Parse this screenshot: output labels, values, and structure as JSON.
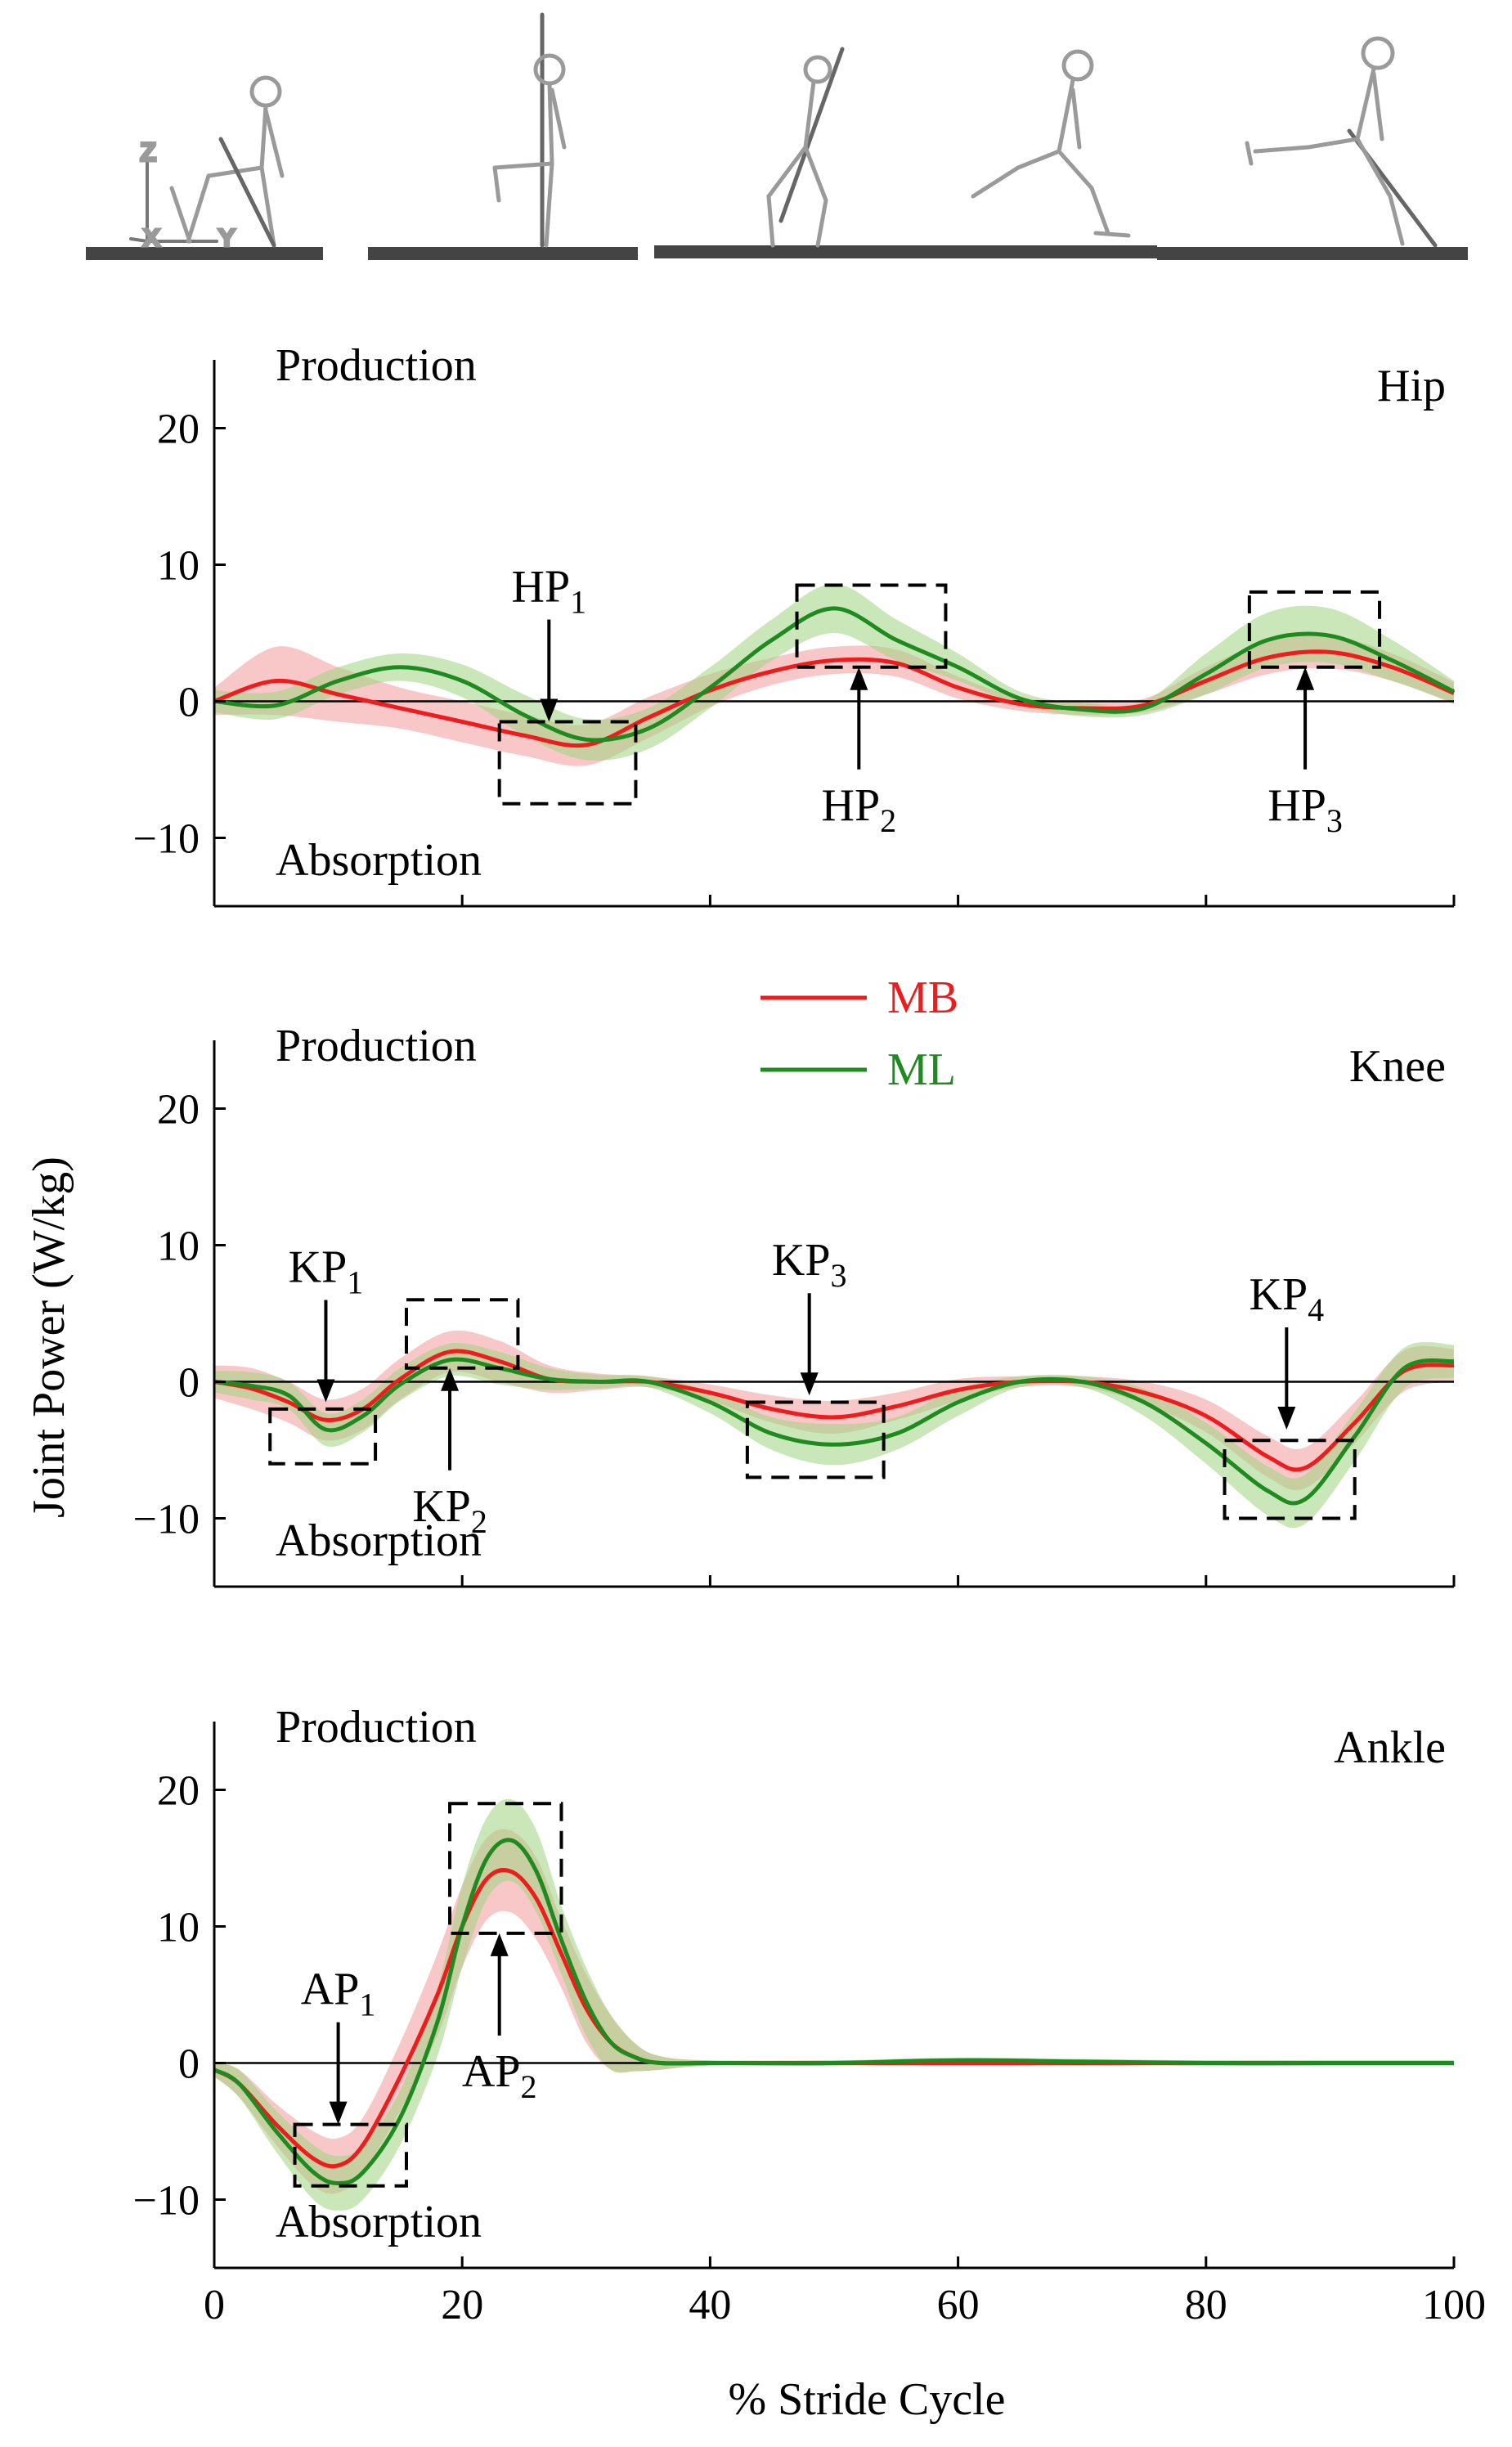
{
  "figure_title": "",
  "colors": {
    "MB": "#ee1c1c",
    "ML": "#1f8a1f",
    "MB_band": "#f39a9a",
    "ML_band": "#9fd37f",
    "axis": "#000000"
  },
  "legend": [
    {
      "label": "MB",
      "color": "#ee1c1c"
    },
    {
      "label": "ML",
      "color": "#1f8a1f"
    }
  ],
  "xlabel": "% Stride Cycle",
  "ylabel": "Joint Power (W/kg)",
  "illustration": {
    "axis_letters": [
      "Z",
      "X",
      "Y"
    ],
    "description": "skeleton figures across the stride cycle"
  },
  "chart_data": [
    {
      "type": "line",
      "panel": "Hip",
      "title": "Hip",
      "region_top": "Production",
      "region_bottom": "Absorption",
      "xlabel": "% Stride Cycle",
      "ylabel": "Joint Power (W/kg)",
      "xlim": [
        0,
        100
      ],
      "ylim": [
        -15,
        25
      ],
      "xticks": [
        0,
        20,
        40,
        60,
        80,
        100
      ],
      "yticks": [
        -10,
        0,
        10,
        20
      ],
      "x": [
        0,
        5,
        10,
        15,
        20,
        25,
        30,
        35,
        40,
        45,
        50,
        55,
        60,
        65,
        70,
        75,
        80,
        85,
        90,
        95,
        100
      ],
      "series": [
        {
          "name": "MB",
          "values": [
            0,
            1.5,
            0.5,
            -0.5,
            -1.5,
            -2.5,
            -3.2,
            -1.2,
            0.8,
            2.2,
            3.0,
            2.8,
            1.0,
            -0.2,
            -0.5,
            -0.3,
            1.5,
            3.2,
            3.6,
            2.5,
            0.6
          ],
          "sd": [
            1,
            2.5,
            2,
            1.5,
            1.5,
            1.5,
            1.5,
            1.5,
            1.2,
            1,
            1,
            1,
            0.8,
            0.5,
            0.5,
            0.5,
            1,
            1.2,
            1.2,
            1,
            0.8
          ]
        },
        {
          "name": "ML",
          "values": [
            0,
            -0.3,
            1.5,
            2.5,
            1.5,
            -1.0,
            -2.8,
            -2.0,
            1.0,
            4.5,
            6.8,
            4.5,
            2.5,
            0.2,
            -0.6,
            -0.5,
            2.0,
            4.5,
            4.8,
            3.0,
            0.7
          ],
          "sd": [
            0.8,
            1,
            1,
            1,
            1.2,
            1.5,
            1.5,
            1.5,
            1.5,
            1.5,
            1.8,
            1.5,
            1,
            0.5,
            0.5,
            0.5,
            1.5,
            2,
            2,
            1.5,
            0.8
          ]
        }
      ],
      "annotations": [
        {
          "label": "HP",
          "sub": "1",
          "x": 27,
          "y": -1.5,
          "from": "above"
        },
        {
          "label": "HP",
          "sub": "2",
          "x": 52,
          "y": 2.5,
          "from": "below"
        },
        {
          "label": "HP",
          "sub": "3",
          "x": 88,
          "y": 2.5,
          "from": "below"
        }
      ],
      "boxes": [
        {
          "x0": 23,
          "x1": 34,
          "y0": -7.5,
          "y1": -1.5
        },
        {
          "x0": 47,
          "x1": 59,
          "y0": 2.5,
          "y1": 8.5
        },
        {
          "x0": 83.5,
          "x1": 94,
          "y0": 2.5,
          "y1": 8
        }
      ]
    },
    {
      "type": "line",
      "panel": "Knee",
      "title": "Knee",
      "region_top": "Production",
      "region_bottom": "Absorption",
      "xlabel": "% Stride Cycle",
      "ylabel": "Joint Power (W/kg)",
      "xlim": [
        0,
        100
      ],
      "ylim": [
        -15,
        25
      ],
      "xticks": [
        0,
        20,
        40,
        60,
        80,
        100
      ],
      "yticks": [
        -10,
        0,
        10,
        20
      ],
      "x": [
        0,
        3,
        6,
        9,
        12,
        15,
        19,
        23,
        27,
        31,
        35,
        40,
        45,
        50,
        55,
        60,
        65,
        70,
        75,
        80,
        85,
        88,
        92,
        96,
        100
      ],
      "series": [
        {
          "name": "MB",
          "values": [
            0,
            -0.5,
            -1.5,
            -2.8,
            -2.0,
            0.2,
            2.2,
            1.5,
            0.2,
            0,
            0,
            -0.8,
            -2.0,
            -2.6,
            -1.8,
            -0.6,
            0,
            0,
            -0.8,
            -2.5,
            -5.5,
            -6.3,
            -3.0,
            0.8,
            1.2
          ],
          "sd": [
            1.2,
            1.5,
            1.5,
            1.5,
            1.5,
            1.5,
            1.5,
            1.5,
            1,
            0.6,
            0.4,
            0.6,
            1,
            1.2,
            1,
            0.8,
            0.4,
            0.4,
            0.8,
            1.2,
            1.5,
            1.5,
            1.5,
            1.5,
            1.2
          ]
        },
        {
          "name": "ML",
          "values": [
            0,
            -0.3,
            -1.0,
            -3.5,
            -2.5,
            -0.2,
            1.6,
            1.0,
            0.2,
            0,
            0,
            -1.5,
            -3.8,
            -4.6,
            -3.8,
            -1.5,
            0,
            0,
            -1.5,
            -4.5,
            -8.0,
            -8.6,
            -4.0,
            1.0,
            1.5
          ],
          "sd": [
            0.8,
            1,
            1,
            1.2,
            1.2,
            1.2,
            1.2,
            1.2,
            0.8,
            0.5,
            0.4,
            0.8,
            1.2,
            1.5,
            1.2,
            1,
            0.4,
            0.4,
            1,
            1.5,
            1.8,
            1.8,
            1.8,
            1.5,
            1.2
          ]
        }
      ],
      "annotations": [
        {
          "label": "KP",
          "sub": "1",
          "x": 9,
          "y": -1.5,
          "from": "above"
        },
        {
          "label": "KP",
          "sub": "2",
          "x": 19,
          "y": 1.0,
          "from": "below"
        },
        {
          "label": "KP",
          "sub": "3",
          "x": 48,
          "y": -1.0,
          "from": "above"
        },
        {
          "label": "KP",
          "sub": "4",
          "x": 86.5,
          "y": -3.5,
          "from": "above"
        }
      ],
      "boxes": [
        {
          "x0": 4.5,
          "x1": 13,
          "y0": -6,
          "y1": -2
        },
        {
          "x0": 15.5,
          "x1": 24.5,
          "y0": 1,
          "y1": 6
        },
        {
          "x0": 43,
          "x1": 54,
          "y0": -7,
          "y1": -1.5
        },
        {
          "x0": 81.5,
          "x1": 92,
          "y0": -10,
          "y1": -4.3
        }
      ]
    },
    {
      "type": "line",
      "panel": "Ankle",
      "title": "Ankle",
      "region_top": "Production",
      "region_bottom": "Absorption",
      "xlabel": "% Stride Cycle",
      "ylabel": "Joint Power (W/kg)",
      "xlim": [
        0,
        100
      ],
      "ylim": [
        -15,
        25
      ],
      "xticks": [
        0,
        20,
        40,
        60,
        80,
        100
      ],
      "yticks": [
        -10,
        0,
        10,
        20
      ],
      "x": [
        0,
        2,
        5,
        8,
        10,
        12,
        15,
        18,
        20,
        22,
        24,
        26,
        28,
        30,
        32,
        34,
        36,
        40,
        50,
        60,
        70,
        80,
        90,
        100
      ],
      "series": [
        {
          "name": "MB",
          "values": [
            -0.5,
            -1.5,
            -4.5,
            -7.0,
            -7.5,
            -6.0,
            -1.0,
            5.0,
            10.0,
            13.5,
            14.0,
            12.0,
            8.0,
            4.0,
            1.5,
            0.4,
            0,
            0,
            0,
            0,
            0,
            0,
            0,
            0
          ],
          "sd": [
            0.5,
            1,
            1.5,
            2,
            2,
            2,
            2.5,
            3,
            3,
            3,
            3,
            3,
            2.5,
            2.5,
            2,
            1,
            0.5,
            0.2,
            0.2,
            0.2,
            0.2,
            0.2,
            0.2,
            0.2
          ]
        },
        {
          "name": "ML",
          "values": [
            -0.5,
            -1.5,
            -5.0,
            -8.0,
            -8.8,
            -8.0,
            -4.0,
            3.0,
            10.0,
            15.0,
            16.3,
            14.0,
            9.0,
            4.5,
            1.5,
            0.4,
            0,
            0,
            0,
            0.2,
            0.1,
            0,
            0,
            0
          ],
          "sd": [
            0.5,
            1,
            1.5,
            2,
            2,
            2,
            2,
            2.5,
            3,
            3,
            3,
            3,
            2.5,
            2.5,
            2,
            1,
            0.5,
            0.2,
            0.2,
            0.2,
            0.2,
            0.2,
            0.2,
            0.2
          ]
        }
      ],
      "annotations": [
        {
          "label": "AP",
          "sub": "1",
          "x": 10,
          "y": -4.5,
          "from": "above"
        },
        {
          "label": "AP",
          "sub": "2",
          "x": 23,
          "y": 9.5,
          "from": "below"
        }
      ],
      "boxes": [
        {
          "x0": 6.5,
          "x1": 15.5,
          "y0": -9,
          "y1": -4.5
        },
        {
          "x0": 19,
          "x1": 28,
          "y0": 9.5,
          "y1": 19
        }
      ]
    }
  ]
}
